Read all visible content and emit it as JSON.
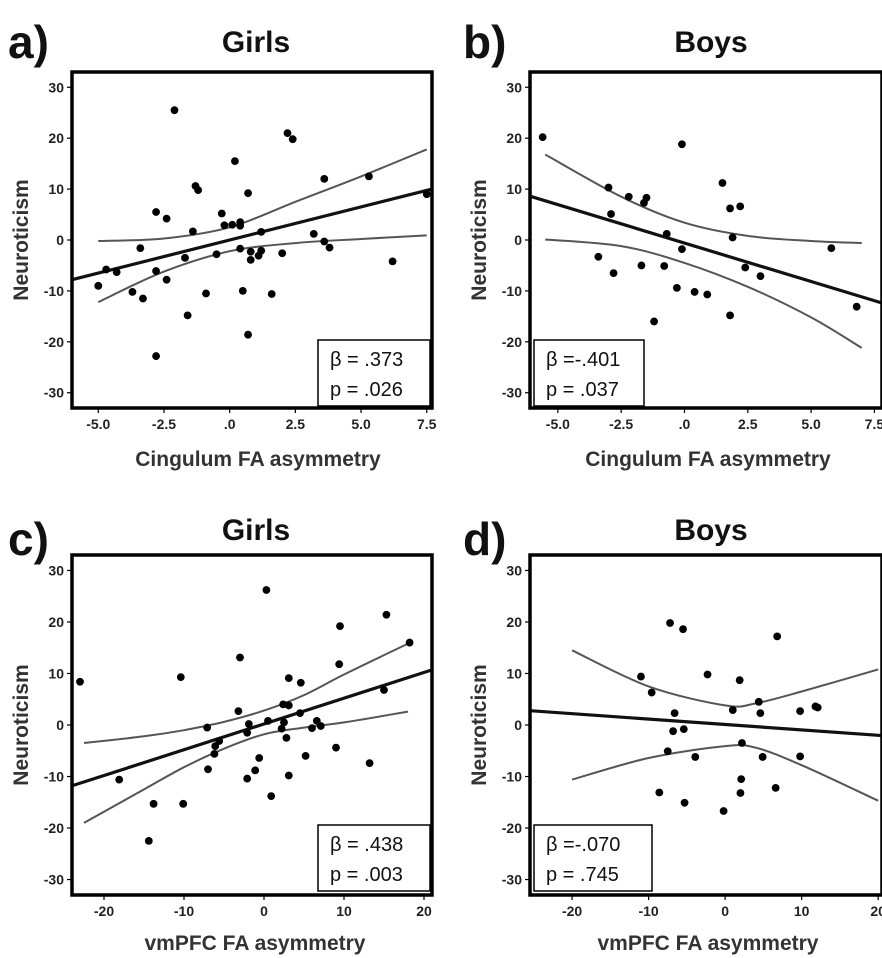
{
  "chart_data": [
    {
      "type": "scatter",
      "panel": "a)",
      "title": "Girls",
      "xlabel": "Cingulum FA asymmetry",
      "ylabel": "Neuroticism",
      "xlim": [
        -6,
        7.7
      ],
      "ylim": [
        -33,
        33
      ],
      "xticks": [
        "-5.0",
        "-2.5",
        ".0",
        "2.5",
        "5.0",
        "7.5"
      ],
      "xtick_values": [
        -5,
        -2.5,
        0,
        2.5,
        5,
        7.5
      ],
      "yticks": [
        "30",
        "20",
        "10",
        "0",
        "-10",
        "-20",
        "-30"
      ],
      "ytick_values": [
        30,
        20,
        10,
        0,
        -10,
        -20,
        -30
      ],
      "stats": {
        "beta": "β = .373",
        "p": "p = .026"
      },
      "fit": {
        "slope": 1.3,
        "intercept": 0.0
      },
      "ci": {
        "upper": [
          [
            -5,
            -0.2
          ],
          [
            -2.5,
            0.3
          ],
          [
            0,
            2.5
          ],
          [
            2.5,
            7.5
          ],
          [
            5,
            12.5
          ],
          [
            7.5,
            17.8
          ]
        ],
        "lower": [
          [
            -5,
            -12.2
          ],
          [
            -2.5,
            -6.2
          ],
          [
            0,
            -2.2
          ],
          [
            2.5,
            -0.6
          ],
          [
            5,
            0.2
          ],
          [
            7.5,
            0.9
          ]
        ]
      },
      "points": [
        [
          -2.1,
          25.5
        ],
        [
          2.2,
          21
        ],
        [
          2.4,
          19.8
        ],
        [
          0.2,
          15.5
        ],
        [
          5.3,
          12.5
        ],
        [
          3.6,
          12
        ],
        [
          -1.3,
          10.6
        ],
        [
          -1.2,
          9.8
        ],
        [
          0.7,
          9.2
        ],
        [
          7.5,
          9
        ],
        [
          -2.8,
          5.5
        ],
        [
          -2.4,
          4.2
        ],
        [
          -0.3,
          5.2
        ],
        [
          0.4,
          3.5
        ],
        [
          0.1,
          3
        ],
        [
          -0.2,
          2.9
        ],
        [
          0.4,
          2.8
        ],
        [
          1.2,
          1.6
        ],
        [
          -1.4,
          1.7
        ],
        [
          3.2,
          1.2
        ],
        [
          -3.4,
          -1.6
        ],
        [
          -1.7,
          -3.5
        ],
        [
          -0.5,
          -2.8
        ],
        [
          0.4,
          -1.7
        ],
        [
          0.8,
          -2.3
        ],
        [
          1.2,
          -2.1
        ],
        [
          3.6,
          -0.3
        ],
        [
          3.8,
          -1.5
        ],
        [
          -4.7,
          -5.8
        ],
        [
          -4.3,
          -6.3
        ],
        [
          -2.8,
          -6.1
        ],
        [
          -2.4,
          -7.8
        ],
        [
          -3.7,
          -10.2
        ],
        [
          -3.3,
          -11.5
        ],
        [
          -0.9,
          -10.5
        ],
        [
          0.5,
          -10
        ],
        [
          1.6,
          -10.6
        ],
        [
          0.8,
          -3.9
        ],
        [
          1.1,
          -3.1
        ],
        [
          2,
          -2.6
        ],
        [
          -5,
          -9
        ],
        [
          -1.6,
          -14.8
        ],
        [
          6.2,
          -4.2
        ],
        [
          0.7,
          -18.6
        ],
        [
          -2.8,
          -22.8
        ]
      ]
    },
    {
      "type": "scatter",
      "panel": "b)",
      "title": "Boys",
      "xlabel": "Cingulum FA asymmetry",
      "ylabel": "Neuroticism",
      "xlim": [
        -6.1,
        7.8
      ],
      "ylim": [
        -33,
        33
      ],
      "xticks": [
        "-5.0",
        "-2.5",
        ".0",
        "2.5",
        "5.0",
        "7.5"
      ],
      "xtick_values": [
        -5,
        -2.5,
        0,
        2.5,
        5,
        7.5
      ],
      "yticks": [
        "30",
        "20",
        "10",
        "0",
        "-10",
        "-20",
        "-30"
      ],
      "ytick_values": [
        30,
        20,
        10,
        0,
        -10,
        -20,
        -30
      ],
      "stats": {
        "beta": "β =-.401",
        "p": "p = .037"
      },
      "fit": {
        "slope": -1.51,
        "intercept": -0.6
      },
      "ci": {
        "upper": [
          [
            -5.5,
            16.8
          ],
          [
            -2.5,
            8.5
          ],
          [
            0,
            3.4
          ],
          [
            2.5,
            0.8
          ],
          [
            5,
            -0.2
          ],
          [
            7,
            -0.6
          ]
        ],
        "lower": [
          [
            -5.5,
            0.1
          ],
          [
            -2.5,
            -1.2
          ],
          [
            0,
            -4.5
          ],
          [
            2.5,
            -9.2
          ],
          [
            5,
            -15.2
          ],
          [
            7,
            -21.2
          ]
        ]
      },
      "points": [
        [
          -5.6,
          20.2
        ],
        [
          -0.1,
          18.8
        ],
        [
          1.5,
          11.2
        ],
        [
          -3,
          10.3
        ],
        [
          -1.5,
          8.3
        ],
        [
          -1.6,
          7.3
        ],
        [
          -2.2,
          8.5
        ],
        [
          1.8,
          6.2
        ],
        [
          2.2,
          6.6
        ],
        [
          -2.9,
          5.1
        ],
        [
          -0.7,
          1.2
        ],
        [
          1.9,
          0.5
        ],
        [
          -0.1,
          -1.8
        ],
        [
          5.8,
          -1.6
        ],
        [
          -3.4,
          -3.3
        ],
        [
          2.4,
          -5.4
        ],
        [
          3,
          -7.1
        ],
        [
          -2.8,
          -6.5
        ],
        [
          -1.7,
          -5
        ],
        [
          -0.8,
          -5.1
        ],
        [
          -0.3,
          -9.4
        ],
        [
          0.4,
          -10.2
        ],
        [
          0.9,
          -10.7
        ],
        [
          -1.2,
          -16
        ],
        [
          1.8,
          -14.8
        ],
        [
          6.8,
          -13.1
        ]
      ]
    },
    {
      "type": "scatter",
      "panel": "c)",
      "title": "Girls",
      "xlabel": "vmPFC FA asymmetry",
      "ylabel": "Neuroticism",
      "xlim": [
        -24,
        21
      ],
      "ylim": [
        -33,
        33
      ],
      "xticks": [
        "-20",
        "-10",
        "0",
        "10",
        "20"
      ],
      "xtick_values": [
        -20,
        -10,
        0,
        10,
        20
      ],
      "yticks": [
        "30",
        "20",
        "10",
        "0",
        "-10",
        "-20",
        "-30"
      ],
      "ytick_values": [
        30,
        20,
        10,
        0,
        -10,
        -20,
        -30
      ],
      "stats": {
        "beta": "β = .438",
        "p": "p = .003"
      },
      "fit": {
        "slope": 0.5,
        "intercept": 0.2
      },
      "ci": {
        "upper": [
          [
            -22.5,
            -3.5
          ],
          [
            -15,
            -2.2
          ],
          [
            -10,
            -1
          ],
          [
            -5,
            0.6
          ],
          [
            0,
            2.8
          ],
          [
            5,
            5.8
          ],
          [
            10,
            9.8
          ],
          [
            18,
            15.8
          ]
        ],
        "lower": [
          [
            -22.5,
            -19
          ],
          [
            -15,
            -12.5
          ],
          [
            -10,
            -8.2
          ],
          [
            -5,
            -4.6
          ],
          [
            0,
            -1.8
          ],
          [
            5,
            -0.5
          ],
          [
            10,
            0.5
          ],
          [
            18,
            2.6
          ]
        ]
      },
      "points": [
        [
          0.3,
          26.2
        ],
        [
          15.3,
          21.4
        ],
        [
          9.5,
          19.2
        ],
        [
          18.2,
          16
        ],
        [
          -3,
          13.1
        ],
        [
          9.4,
          11.8
        ],
        [
          -23,
          8.4
        ],
        [
          -10.4,
          9.3
        ],
        [
          3.1,
          9.1
        ],
        [
          4.6,
          8.2
        ],
        [
          15,
          6.8
        ],
        [
          -3.2,
          2.7
        ],
        [
          2.4,
          4
        ],
        [
          3.1,
          3.8
        ],
        [
          4.5,
          2.3
        ],
        [
          0.5,
          0.8
        ],
        [
          -7.1,
          -0.5
        ],
        [
          2.5,
          0.5
        ],
        [
          6.6,
          0.8
        ],
        [
          7.1,
          -0.2
        ],
        [
          6,
          -0.6
        ],
        [
          -1.9,
          0.2
        ],
        [
          2.2,
          -0.7
        ],
        [
          -2.1,
          -1.5
        ],
        [
          2.8,
          -2.5
        ],
        [
          -6.1,
          -4.1
        ],
        [
          -6.2,
          -5.6
        ],
        [
          5.2,
          -6
        ],
        [
          -5.6,
          -3.1
        ],
        [
          -2.1,
          -10.4
        ],
        [
          -7,
          -8.6
        ],
        [
          -1.1,
          -8.8
        ],
        [
          -0.6,
          -6.4
        ],
        [
          9,
          -4.4
        ],
        [
          3.1,
          -9.8
        ],
        [
          -18.1,
          -10.6
        ],
        [
          13.2,
          -7.4
        ],
        [
          -13.8,
          -15.3
        ],
        [
          -10.1,
          -15.3
        ],
        [
          0.9,
          -13.8
        ],
        [
          -14.4,
          -22.5
        ]
      ]
    },
    {
      "type": "scatter",
      "panel": "d)",
      "title": "Boys",
      "xlabel": "vmPFC FA asymmetry",
      "ylabel": "Neuroticism",
      "xlim": [
        -25.5,
        20.5
      ],
      "ylim": [
        -33,
        33
      ],
      "xticks": [
        "-20",
        "-10",
        "0",
        "10",
        "20"
      ],
      "xtick_values": [
        -20,
        -10,
        0,
        10,
        20
      ],
      "yticks": [
        "30",
        "20",
        "10",
        "0",
        "-10",
        "-20",
        "-30"
      ],
      "ytick_values": [
        30,
        20,
        10,
        0,
        -10,
        -20,
        -30
      ],
      "stats": {
        "beta": "β =-.070",
        "p": "p = .745"
      },
      "fit": {
        "slope": -0.105,
        "intercept": 0.1
      },
      "ci": {
        "upper": [
          [
            -20,
            14.5
          ],
          [
            -10,
            7.5
          ],
          [
            0,
            3.8
          ],
          [
            4,
            4.2
          ],
          [
            10,
            6.5
          ],
          [
            20,
            10.8
          ]
        ],
        "lower": [
          [
            -20,
            -10.6
          ],
          [
            -10,
            -6.4
          ],
          [
            0,
            -4.1
          ],
          [
            4,
            -4.4
          ],
          [
            10,
            -7.8
          ],
          [
            20,
            -14.7
          ]
        ]
      },
      "points": [
        [
          -7.2,
          19.8
        ],
        [
          -5.5,
          18.6
        ],
        [
          6.8,
          17.2
        ],
        [
          -11,
          9.4
        ],
        [
          -2.3,
          9.8
        ],
        [
          1.9,
          8.7
        ],
        [
          -9.6,
          6.3
        ],
        [
          4.4,
          4.5
        ],
        [
          11.8,
          3.6
        ],
        [
          12.1,
          3.4
        ],
        [
          1,
          2.9
        ],
        [
          -6.6,
          2.3
        ],
        [
          4.6,
          2.3
        ],
        [
          9.8,
          2.7
        ],
        [
          -5.4,
          -0.8
        ],
        [
          -6.8,
          -1.2
        ],
        [
          2.2,
          -3.5
        ],
        [
          -3.9,
          -6.2
        ],
        [
          4.9,
          -6.2
        ],
        [
          9.8,
          -6.1
        ],
        [
          -7.5,
          -5.1
        ],
        [
          -8.6,
          -13.1
        ],
        [
          2.1,
          -10.5
        ],
        [
          6.6,
          -12.2
        ],
        [
          2,
          -13.2
        ],
        [
          -5.3,
          -15.1
        ],
        [
          -0.2,
          -16.7
        ]
      ]
    }
  ]
}
